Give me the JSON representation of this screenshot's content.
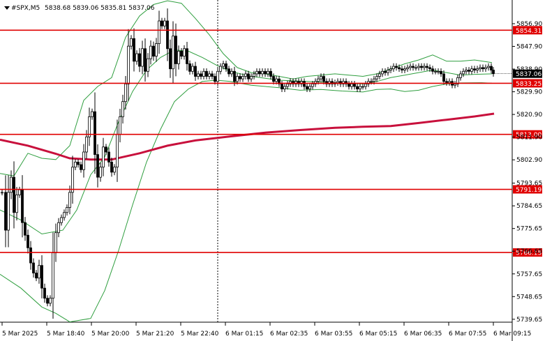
{
  "header": {
    "symbol": "#SPX,M5",
    "ohlc": "5838.68 5839.06 5835.81 5837.06"
  },
  "chart_data": {
    "type": "candlestick",
    "ylim": [
      5738.5,
      5866.3
    ],
    "y_ticks": [
      "5856.90",
      "5847.90",
      "5838.90",
      "5829.90",
      "5820.90",
      "5811.90",
      "5802.90",
      "5793.65",
      "5784.65",
      "5775.65",
      "5766.65",
      "5757.65",
      "5748.65",
      "5739.65"
    ],
    "x_ticks": [
      "5 Mar 2025",
      "5 Mar 18:40",
      "5 Mar 20:00",
      "5 Mar 21:20",
      "5 Mar 22:40",
      "6 Mar 01:15",
      "6 Mar 02:35",
      "6 Mar 03:55",
      "6 Mar 05:15",
      "6 Mar 06:35",
      "6 Mar 07:55",
      "6 Mar 09:15"
    ],
    "levels": [
      {
        "label": "5854.31",
        "value": 5854.31
      },
      {
        "label": "5833.25",
        "value": 5833.25
      },
      {
        "label": "5813.00",
        "value": 5813.0
      },
      {
        "label": "5791.19",
        "value": 5791.19
      },
      {
        "label": "5766.15",
        "value": 5766.15
      }
    ],
    "last_price": {
      "label": "5837.06",
      "value": 5837.06
    },
    "colors": {
      "level": "#e00000",
      "ma": "#c8103c",
      "bands": "#2e9e3e",
      "candle": "#000000",
      "grid": "#000000"
    },
    "ma200": [
      {
        "x": 0,
        "y": 5810.9
      },
      {
        "x": 40,
        "y": 5808.5
      },
      {
        "x": 80,
        "y": 5805.3
      },
      {
        "x": 100,
        "y": 5803.5
      },
      {
        "x": 130,
        "y": 5803.0
      },
      {
        "x": 160,
        "y": 5803.0
      },
      {
        "x": 200,
        "y": 5805.5
      },
      {
        "x": 240,
        "y": 5808.5
      },
      {
        "x": 280,
        "y": 5810.6
      },
      {
        "x": 330,
        "y": 5812.2
      },
      {
        "x": 380,
        "y": 5813.7
      },
      {
        "x": 430,
        "y": 5814.7
      },
      {
        "x": 480,
        "y": 5815.6
      },
      {
        "x": 520,
        "y": 5816.0
      },
      {
        "x": 560,
        "y": 5816.3
      },
      {
        "x": 600,
        "y": 5817.5
      },
      {
        "x": 640,
        "y": 5818.8
      },
      {
        "x": 680,
        "y": 5820.1
      },
      {
        "x": 708,
        "y": 5821.2
      }
    ],
    "band_upper": [
      {
        "x": 0,
        "y": 5797.5
      },
      {
        "x": 20,
        "y": 5796.5
      },
      {
        "x": 40,
        "y": 5805.5
      },
      {
        "x": 60,
        "y": 5803.5
      },
      {
        "x": 80,
        "y": 5803.0
      },
      {
        "x": 100,
        "y": 5808.5
      },
      {
        "x": 120,
        "y": 5826.5
      },
      {
        "x": 140,
        "y": 5832.0
      },
      {
        "x": 160,
        "y": 5835.5
      },
      {
        "x": 180,
        "y": 5851.5
      },
      {
        "x": 200,
        "y": 5860.0
      },
      {
        "x": 220,
        "y": 5864.5
      },
      {
        "x": 240,
        "y": 5866.0
      },
      {
        "x": 260,
        "y": 5865.0
      },
      {
        "x": 280,
        "y": 5859.0
      },
      {
        "x": 300,
        "y": 5852.5
      },
      {
        "x": 320,
        "y": 5845.0
      },
      {
        "x": 340,
        "y": 5839.5
      },
      {
        "x": 360,
        "y": 5837.5
      },
      {
        "x": 380,
        "y": 5837.0
      },
      {
        "x": 400,
        "y": 5836.0
      },
      {
        "x": 420,
        "y": 5835.0
      },
      {
        "x": 440,
        "y": 5836.0
      },
      {
        "x": 460,
        "y": 5836.5
      },
      {
        "x": 480,
        "y": 5837.0
      },
      {
        "x": 500,
        "y": 5836.5
      },
      {
        "x": 520,
        "y": 5836.0
      },
      {
        "x": 540,
        "y": 5837.0
      },
      {
        "x": 560,
        "y": 5839.0
      },
      {
        "x": 580,
        "y": 5841.0
      },
      {
        "x": 600,
        "y": 5842.5
      },
      {
        "x": 620,
        "y": 5844.5
      },
      {
        "x": 640,
        "y": 5842.0
      },
      {
        "x": 660,
        "y": 5842.0
      },
      {
        "x": 680,
        "y": 5842.5
      },
      {
        "x": 705,
        "y": 5841.5
      }
    ],
    "band_middle": [
      {
        "x": 0,
        "y": 5783.0
      },
      {
        "x": 30,
        "y": 5779.0
      },
      {
        "x": 60,
        "y": 5773.5
      },
      {
        "x": 90,
        "y": 5775.0
      },
      {
        "x": 110,
        "y": 5783.0
      },
      {
        "x": 130,
        "y": 5797.0
      },
      {
        "x": 150,
        "y": 5804.0
      },
      {
        "x": 170,
        "y": 5818.0
      },
      {
        "x": 190,
        "y": 5830.0
      },
      {
        "x": 210,
        "y": 5838.5
      },
      {
        "x": 230,
        "y": 5843.5
      },
      {
        "x": 250,
        "y": 5846.5
      },
      {
        "x": 270,
        "y": 5846.0
      },
      {
        "x": 290,
        "y": 5843.5
      },
      {
        "x": 310,
        "y": 5840.5
      },
      {
        "x": 330,
        "y": 5838.0
      },
      {
        "x": 360,
        "y": 5836.0
      },
      {
        "x": 400,
        "y": 5834.5
      },
      {
        "x": 440,
        "y": 5834.0
      },
      {
        "x": 480,
        "y": 5833.5
      },
      {
        "x": 520,
        "y": 5833.0
      },
      {
        "x": 540,
        "y": 5834.0
      },
      {
        "x": 560,
        "y": 5835.5
      },
      {
        "x": 580,
        "y": 5836.5
      },
      {
        "x": 600,
        "y": 5837.5
      },
      {
        "x": 620,
        "y": 5838.5
      },
      {
        "x": 640,
        "y": 5837.5
      },
      {
        "x": 660,
        "y": 5836.5
      },
      {
        "x": 680,
        "y": 5836.8
      },
      {
        "x": 705,
        "y": 5837.0
      }
    ],
    "band_lower": [
      {
        "x": 0,
        "y": 5757.5
      },
      {
        "x": 30,
        "y": 5752.0
      },
      {
        "x": 60,
        "y": 5744.5
      },
      {
        "x": 80,
        "y": 5742.0
      },
      {
        "x": 100,
        "y": 5738.6
      },
      {
        "x": 130,
        "y": 5740.0
      },
      {
        "x": 150,
        "y": 5751.0
      },
      {
        "x": 170,
        "y": 5767.0
      },
      {
        "x": 190,
        "y": 5785.0
      },
      {
        "x": 210,
        "y": 5802.0
      },
      {
        "x": 230,
        "y": 5815.0
      },
      {
        "x": 250,
        "y": 5826.0
      },
      {
        "x": 270,
        "y": 5831.0
      },
      {
        "x": 290,
        "y": 5834.0
      },
      {
        "x": 310,
        "y": 5834.5
      },
      {
        "x": 330,
        "y": 5834.0
      },
      {
        "x": 360,
        "y": 5832.5
      },
      {
        "x": 400,
        "y": 5831.5
      },
      {
        "x": 430,
        "y": 5830.5
      },
      {
        "x": 460,
        "y": 5830.8
      },
      {
        "x": 490,
        "y": 5830.2
      },
      {
        "x": 520,
        "y": 5829.8
      },
      {
        "x": 540,
        "y": 5830.8
      },
      {
        "x": 560,
        "y": 5831.0
      },
      {
        "x": 580,
        "y": 5830.0
      },
      {
        "x": 600,
        "y": 5830.5
      },
      {
        "x": 620,
        "y": 5832.0
      },
      {
        "x": 640,
        "y": 5833.0
      },
      {
        "x": 660,
        "y": 5833.4
      },
      {
        "x": 690,
        "y": 5833.5
      },
      {
        "x": 705,
        "y": 5833.3
      }
    ],
    "close_path": [
      {
        "x": 3,
        "y": 5790.0
      },
      {
        "x": 8,
        "y": 5775.0
      },
      {
        "x": 12,
        "y": 5790.0
      },
      {
        "x": 16,
        "y": 5796.0
      },
      {
        "x": 20,
        "y": 5782.0
      },
      {
        "x": 24,
        "y": 5789.0
      },
      {
        "x": 28,
        "y": 5791.0
      },
      {
        "x": 32,
        "y": 5778.0
      },
      {
        "x": 36,
        "y": 5773.0
      },
      {
        "x": 40,
        "y": 5768.0
      },
      {
        "x": 44,
        "y": 5762.0
      },
      {
        "x": 48,
        "y": 5758.0
      },
      {
        "x": 52,
        "y": 5756.0
      },
      {
        "x": 56,
        "y": 5761.0
      },
      {
        "x": 60,
        "y": 5752.0
      },
      {
        "x": 64,
        "y": 5748.0
      },
      {
        "x": 68,
        "y": 5746.0
      },
      {
        "x": 72,
        "y": 5748.0
      },
      {
        "x": 76,
        "y": 5766.0
      },
      {
        "x": 80,
        "y": 5774.0
      },
      {
        "x": 84,
        "y": 5778.0
      },
      {
        "x": 88,
        "y": 5780.0
      },
      {
        "x": 92,
        "y": 5782.0
      },
      {
        "x": 96,
        "y": 5784.0
      },
      {
        "x": 100,
        "y": 5790.0
      },
      {
        "x": 104,
        "y": 5800.0
      },
      {
        "x": 108,
        "y": 5802.0
      },
      {
        "x": 112,
        "y": 5801.0
      },
      {
        "x": 116,
        "y": 5799.0
      },
      {
        "x": 120,
        "y": 5806.0
      },
      {
        "x": 124,
        "y": 5812.0
      },
      {
        "x": 128,
        "y": 5820.0
      },
      {
        "x": 132,
        "y": 5822.0
      },
      {
        "x": 136,
        "y": 5805.0
      },
      {
        "x": 140,
        "y": 5796.0
      },
      {
        "x": 144,
        "y": 5800.0
      },
      {
        "x": 148,
        "y": 5808.0
      },
      {
        "x": 152,
        "y": 5806.0
      },
      {
        "x": 156,
        "y": 5802.0
      },
      {
        "x": 160,
        "y": 5798.0
      },
      {
        "x": 164,
        "y": 5800.0
      },
      {
        "x": 168,
        "y": 5813.0
      },
      {
        "x": 172,
        "y": 5820.0
      },
      {
        "x": 176,
        "y": 5826.0
      },
      {
        "x": 180,
        "y": 5833.0
      },
      {
        "x": 184,
        "y": 5848.0
      },
      {
        "x": 188,
        "y": 5851.0
      },
      {
        "x": 192,
        "y": 5842.0
      },
      {
        "x": 196,
        "y": 5845.0
      },
      {
        "x": 200,
        "y": 5840.0
      },
      {
        "x": 204,
        "y": 5847.0
      },
      {
        "x": 208,
        "y": 5838.0
      },
      {
        "x": 212,
        "y": 5843.0
      },
      {
        "x": 216,
        "y": 5848.0
      },
      {
        "x": 220,
        "y": 5844.0
      },
      {
        "x": 224,
        "y": 5849.0
      },
      {
        "x": 228,
        "y": 5858.0
      },
      {
        "x": 232,
        "y": 5856.0
      },
      {
        "x": 236,
        "y": 5858.0
      },
      {
        "x": 240,
        "y": 5847.0
      },
      {
        "x": 244,
        "y": 5839.0
      },
      {
        "x": 248,
        "y": 5852.0
      },
      {
        "x": 252,
        "y": 5841.0
      },
      {
        "x": 256,
        "y": 5846.0
      },
      {
        "x": 260,
        "y": 5844.0
      },
      {
        "x": 264,
        "y": 5847.0
      },
      {
        "x": 268,
        "y": 5841.0
      },
      {
        "x": 272,
        "y": 5838.0
      },
      {
        "x": 276,
        "y": 5840.0
      },
      {
        "x": 280,
        "y": 5836.0
      },
      {
        "x": 284,
        "y": 5837.0
      },
      {
        "x": 288,
        "y": 5836.0
      },
      {
        "x": 292,
        "y": 5838.0
      },
      {
        "x": 296,
        "y": 5836.0
      },
      {
        "x": 300,
        "y": 5837.0
      },
      {
        "x": 304,
        "y": 5836.0
      },
      {
        "x": 308,
        "y": 5834.0
      },
      {
        "x": 312,
        "y": 5838.0
      },
      {
        "x": 316,
        "y": 5840.0
      },
      {
        "x": 320,
        "y": 5841.0
      },
      {
        "x": 324,
        "y": 5839.0
      },
      {
        "x": 328,
        "y": 5837.0
      },
      {
        "x": 332,
        "y": 5838.0
      },
      {
        "x": 336,
        "y": 5834.0
      },
      {
        "x": 340,
        "y": 5836.0
      },
      {
        "x": 344,
        "y": 5835.0
      },
      {
        "x": 348,
        "y": 5836.0
      },
      {
        "x": 352,
        "y": 5837.0
      },
      {
        "x": 356,
        "y": 5835.0
      },
      {
        "x": 360,
        "y": 5836.0
      },
      {
        "x": 364,
        "y": 5837.0
      },
      {
        "x": 368,
        "y": 5838.0
      },
      {
        "x": 372,
        "y": 5837.0
      },
      {
        "x": 376,
        "y": 5838.0
      },
      {
        "x": 380,
        "y": 5837.0
      },
      {
        "x": 384,
        "y": 5838.0
      },
      {
        "x": 388,
        "y": 5836.0
      },
      {
        "x": 392,
        "y": 5834.0
      },
      {
        "x": 396,
        "y": 5835.0
      },
      {
        "x": 400,
        "y": 5833.0
      },
      {
        "x": 404,
        "y": 5831.0
      },
      {
        "x": 408,
        "y": 5832.0
      },
      {
        "x": 412,
        "y": 5833.0
      },
      {
        "x": 416,
        "y": 5834.0
      },
      {
        "x": 420,
        "y": 5833.0
      },
      {
        "x": 424,
        "y": 5834.0
      },
      {
        "x": 428,
        "y": 5833.0
      },
      {
        "x": 432,
        "y": 5834.0
      },
      {
        "x": 436,
        "y": 5832.0
      },
      {
        "x": 440,
        "y": 5831.0
      },
      {
        "x": 444,
        "y": 5832.0
      },
      {
        "x": 448,
        "y": 5833.0
      },
      {
        "x": 452,
        "y": 5834.0
      },
      {
        "x": 456,
        "y": 5835.0
      },
      {
        "x": 460,
        "y": 5836.0
      },
      {
        "x": 464,
        "y": 5834.0
      },
      {
        "x": 468,
        "y": 5833.0
      },
      {
        "x": 472,
        "y": 5834.0
      },
      {
        "x": 476,
        "y": 5833.0
      },
      {
        "x": 480,
        "y": 5833.5
      },
      {
        "x": 484,
        "y": 5834.0
      },
      {
        "x": 488,
        "y": 5833.0
      },
      {
        "x": 492,
        "y": 5834.0
      },
      {
        "x": 496,
        "y": 5833.0
      },
      {
        "x": 500,
        "y": 5832.0
      },
      {
        "x": 504,
        "y": 5833.0
      },
      {
        "x": 508,
        "y": 5832.0
      },
      {
        "x": 512,
        "y": 5831.0
      },
      {
        "x": 516,
        "y": 5832.0
      },
      {
        "x": 520,
        "y": 5832.0
      },
      {
        "x": 524,
        "y": 5833.0
      },
      {
        "x": 528,
        "y": 5834.0
      },
      {
        "x": 532,
        "y": 5834.0
      },
      {
        "x": 536,
        "y": 5835.0
      },
      {
        "x": 540,
        "y": 5836.0
      },
      {
        "x": 544,
        "y": 5837.0
      },
      {
        "x": 548,
        "y": 5838.0
      },
      {
        "x": 552,
        "y": 5837.5
      },
      {
        "x": 556,
        "y": 5838.5
      },
      {
        "x": 560,
        "y": 5839.0
      },
      {
        "x": 564,
        "y": 5840.0
      },
      {
        "x": 568,
        "y": 5839.5
      },
      {
        "x": 572,
        "y": 5839.0
      },
      {
        "x": 576,
        "y": 5838.5
      },
      {
        "x": 580,
        "y": 5839.0
      },
      {
        "x": 584,
        "y": 5839.5
      },
      {
        "x": 588,
        "y": 5840.0
      },
      {
        "x": 592,
        "y": 5839.5
      },
      {
        "x": 596,
        "y": 5839.5
      },
      {
        "x": 600,
        "y": 5840.0
      },
      {
        "x": 604,
        "y": 5839.5
      },
      {
        "x": 608,
        "y": 5840.0
      },
      {
        "x": 612,
        "y": 5839.5
      },
      {
        "x": 616,
        "y": 5839.0
      },
      {
        "x": 620,
        "y": 5838.0
      },
      {
        "x": 624,
        "y": 5838.0
      },
      {
        "x": 628,
        "y": 5838.0
      },
      {
        "x": 632,
        "y": 5837.0
      },
      {
        "x": 636,
        "y": 5834.0
      },
      {
        "x": 640,
        "y": 5833.5
      },
      {
        "x": 644,
        "y": 5834.0
      },
      {
        "x": 648,
        "y": 5832.5
      },
      {
        "x": 652,
        "y": 5833.0
      },
      {
        "x": 656,
        "y": 5835.5
      },
      {
        "x": 660,
        "y": 5837.0
      },
      {
        "x": 664,
        "y": 5838.0
      },
      {
        "x": 668,
        "y": 5838.5
      },
      {
        "x": 672,
        "y": 5838.0
      },
      {
        "x": 676,
        "y": 5839.0
      },
      {
        "x": 680,
        "y": 5838.5
      },
      {
        "x": 684,
        "y": 5839.0
      },
      {
        "x": 688,
        "y": 5839.5
      },
      {
        "x": 692,
        "y": 5839.0
      },
      {
        "x": 696,
        "y": 5839.5
      },
      {
        "x": 700,
        "y": 5840.0
      },
      {
        "x": 704,
        "y": 5838.5
      },
      {
        "x": 707,
        "y": 5837.06
      }
    ]
  }
}
